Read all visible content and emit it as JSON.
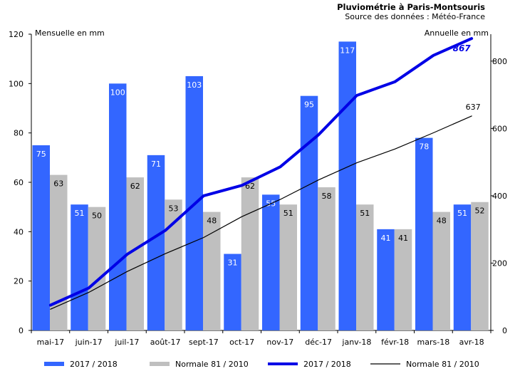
{
  "chart_data": {
    "type": "bar",
    "title": "Pluviométrie à Paris-Montsouris",
    "subtitle": "Source des données : Météo-France",
    "y_left_label": "Mensuelle en mm",
    "y_right_label": "Annuelle en mm",
    "y_left_lim": [
      0,
      120
    ],
    "y_left_ticks": [
      0,
      20,
      40,
      60,
      80,
      100,
      120
    ],
    "y_right_lim": [
      0,
      880
    ],
    "y_right_ticks": [
      0,
      200,
      400,
      600,
      800
    ],
    "categories": [
      "mai-17",
      "juin-17",
      "juil-17",
      "août-17",
      "sept-17",
      "oct-17",
      "nov-17",
      "déc-17",
      "janv-18",
      "févr-18",
      "mars-18",
      "avr-18"
    ],
    "series": [
      {
        "name": "2017 / 2018",
        "type": "bar",
        "axis": "left",
        "color": "#3366ff",
        "values": [
          75,
          51,
          100,
          71,
          103,
          31,
          55,
          95,
          117,
          41,
          78,
          51
        ]
      },
      {
        "name": "Normale 81 / 2010",
        "type": "bar",
        "axis": "left",
        "color": "#bfbfbf",
        "values": [
          63,
          50,
          62,
          53,
          48,
          62,
          51,
          58,
          51,
          41,
          48,
          52
        ]
      },
      {
        "name": "2017 / 2018",
        "type": "line",
        "axis": "right",
        "color": "#0000e6",
        "values": [
          75,
          126,
          226,
          297,
          400,
          431,
          486,
          581,
          698,
          739,
          817,
          867
        ],
        "end_label": "867"
      },
      {
        "name": "Normale 81 / 2010",
        "type": "line",
        "axis": "right",
        "color": "#000000",
        "values": [
          63,
          113,
          175,
          228,
          276,
          338,
          389,
          447,
          498,
          539,
          587,
          637
        ],
        "end_label": "637"
      }
    ],
    "legend_position": "bottom",
    "grid": false
  }
}
